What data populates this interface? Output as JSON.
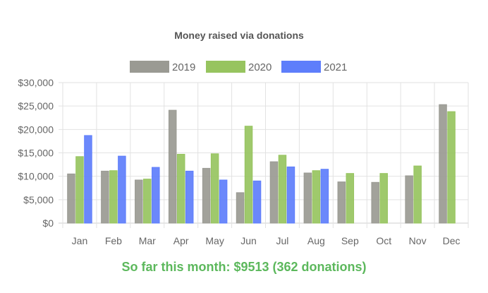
{
  "colors": {
    "2019": "#9a9a93",
    "2020": "#97c45f",
    "2021": "#5e7efb",
    "grid": "#e2e2e2",
    "axis": "#cfcfcf",
    "summary": "#5cb85c"
  },
  "chart_data": {
    "type": "bar",
    "title": "Money raised via donations",
    "xlabel": "",
    "ylabel": "",
    "categories": [
      "Jan",
      "Feb",
      "Mar",
      "Apr",
      "May",
      "Jun",
      "Jul",
      "Aug",
      "Sep",
      "Oct",
      "Nov",
      "Dec"
    ],
    "ylim": [
      0,
      30000
    ],
    "ytick_values": [
      0,
      5000,
      10000,
      15000,
      20000,
      25000,
      30000
    ],
    "ytick_labels": [
      "$0",
      "$5,000",
      "$10,000",
      "$15,000",
      "$20,000",
      "$25,000",
      "$30,000"
    ],
    "grid": true,
    "legend_position": "top",
    "series": [
      {
        "name": "2019",
        "values": [
          10500,
          11100,
          9200,
          24100,
          11700,
          6500,
          13100,
          10700,
          8800,
          8700,
          10100,
          25300
        ]
      },
      {
        "name": "2020",
        "values": [
          14200,
          11200,
          9400,
          14700,
          14800,
          20700,
          14500,
          11200,
          10600,
          10600,
          12200,
          23800
        ]
      },
      {
        "name": "2021",
        "values": [
          18700,
          14300,
          11900,
          11100,
          9200,
          9000,
          12000,
          11500,
          null,
          null,
          null,
          null
        ]
      }
    ]
  },
  "summary": {
    "text": "So far this month: $9513 (362 donations)"
  }
}
